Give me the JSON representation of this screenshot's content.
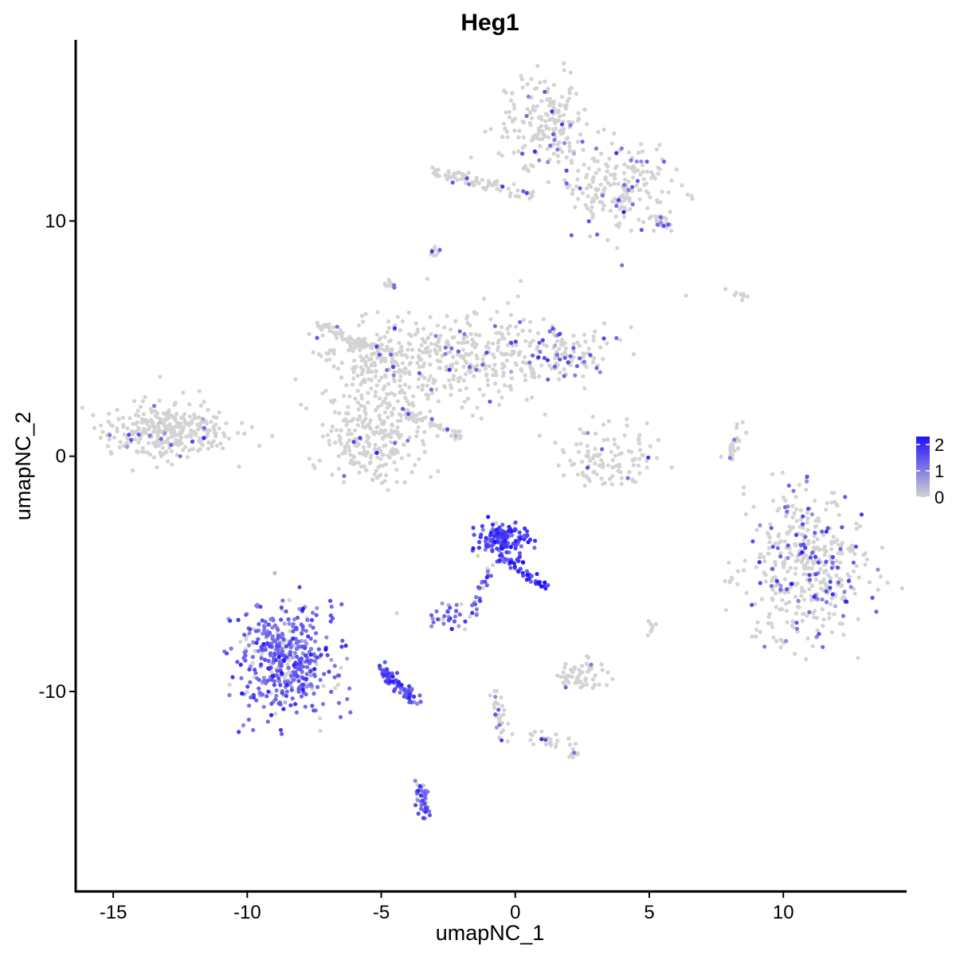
{
  "chart_data": {
    "type": "scatter",
    "title": "Heg1",
    "xlabel": "umapNC_1",
    "ylabel": "umapNC_2",
    "xlim": [
      -16.4,
      14.6
    ],
    "ylim": [
      -18.5,
      17.7
    ],
    "xticks": [
      -15,
      -10,
      -5,
      0,
      5,
      10
    ],
    "yticks": [
      -10,
      0,
      10
    ],
    "xtick_labels": [
      "-15",
      "-10",
      "-5",
      "0",
      "5",
      "10"
    ],
    "ytick_labels": [
      "-10",
      "0",
      "10"
    ],
    "grid": false,
    "legend_position": "right",
    "color_scale": {
      "low": "#d3d3d3",
      "high": "#1f10ff",
      "min": 0,
      "max": 2.3
    },
    "legend_ticks": [
      2,
      1,
      0
    ],
    "legend_tick_labels": [
      "2",
      "1",
      "0"
    ],
    "point_clusters": [
      {
        "cx": -13.0,
        "cy": 1.1,
        "sx": 1.2,
        "sy": 0.6,
        "n": 320,
        "mean_expr": 0.03
      },
      {
        "cx": -5.3,
        "cy": 0.8,
        "sx": 0.9,
        "sy": 1.0,
        "n": 260,
        "mean_expr": 0.04
      },
      {
        "cx": -4.8,
        "cy": 4.0,
        "sx": 1.3,
        "sy": 0.9,
        "n": 240,
        "mean_expr": 0.06
      },
      {
        "cx": -1.5,
        "cy": 4.2,
        "sx": 1.4,
        "sy": 1.0,
        "n": 240,
        "mean_expr": 0.1
      },
      {
        "cx": 1.8,
        "cy": 4.3,
        "sx": 1.0,
        "sy": 0.6,
        "n": 120,
        "mean_expr": 0.3
      },
      {
        "cx": 1.0,
        "cy": 14.2,
        "sx": 0.8,
        "sy": 1.0,
        "n": 200,
        "mean_expr": 0.12
      },
      {
        "cx": 3.9,
        "cy": 11.5,
        "sx": 1.1,
        "sy": 1.0,
        "n": 200,
        "mean_expr": 0.18
      },
      {
        "cx": 10.8,
        "cy": -4.7,
        "sx": 1.1,
        "sy": 1.6,
        "n": 430,
        "mean_expr": 0.25
      },
      {
        "cx": -8.6,
        "cy": -8.6,
        "sx": 0.9,
        "sy": 1.1,
        "n": 460,
        "mean_expr": 1.1
      },
      {
        "cx": -0.5,
        "cy": -3.6,
        "sx": 0.5,
        "sy": 0.4,
        "n": 140,
        "mean_expr": 1.6
      },
      {
        "cx": 2.5,
        "cy": -9.3,
        "sx": 0.4,
        "sy": 0.3,
        "n": 60,
        "mean_expr": 0.05
      },
      {
        "cx": 3.5,
        "cy": 0.1,
        "sx": 0.8,
        "sy": 0.7,
        "n": 110,
        "mean_expr": 0.08
      }
    ],
    "point_strands": [
      {
        "x0": -2.0,
        "y0": 11.9,
        "x1": 0.5,
        "y1": 11.1,
        "n": 50,
        "mean_expr": 0.1
      },
      {
        "x0": -3.0,
        "y0": 12.0,
        "x1": -2.0,
        "y1": 11.9,
        "n": 30,
        "mean_expr": 0.08
      },
      {
        "x0": -7.3,
        "y0": 5.6,
        "x1": -5.0,
        "y1": 4.2,
        "n": 60,
        "mean_expr": 0.05
      },
      {
        "x0": -4.2,
        "y0": 2.0,
        "x1": -2.0,
        "y1": 0.8,
        "n": 40,
        "mean_expr": 0.1
      },
      {
        "x0": -5.0,
        "y0": -9.0,
        "x1": -3.8,
        "y1": -10.4,
        "n": 90,
        "mean_expr": 1.4
      },
      {
        "x0": -0.5,
        "y0": -4.3,
        "x1": 1.2,
        "y1": -5.6,
        "n": 40,
        "mean_expr": 1.7
      },
      {
        "x0": -1.6,
        "y0": -6.8,
        "x1": -0.9,
        "y1": -4.5,
        "n": 30,
        "mean_expr": 1.0
      },
      {
        "x0": -3.5,
        "y0": -14.0,
        "x1": -3.4,
        "y1": -15.3,
        "n": 40,
        "mean_expr": 1.1
      },
      {
        "x0": -0.8,
        "y0": -10.0,
        "x1": -0.4,
        "y1": -12.0,
        "n": 30,
        "mean_expr": 0.3
      },
      {
        "x0": 0.5,
        "y0": -11.8,
        "x1": 2.4,
        "y1": -12.7,
        "n": 30,
        "mean_expr": 0.1
      },
      {
        "x0": 7.9,
        "y0": -0.2,
        "x1": 8.4,
        "y1": 1.3,
        "n": 25,
        "mean_expr": 0.05
      },
      {
        "x0": 5.3,
        "y0": 10.1,
        "x1": 5.9,
        "y1": 9.6,
        "n": 20,
        "mean_expr": 0.15
      }
    ],
    "point_small_groups": [
      {
        "cx": -3.0,
        "cy": 8.7,
        "sx": 0.1,
        "sy": 0.1,
        "n": 10,
        "mean_expr": 0.4
      },
      {
        "cx": -4.7,
        "cy": 7.3,
        "sx": 0.1,
        "sy": 0.1,
        "n": 12,
        "mean_expr": 0.2
      },
      {
        "cx": -2.5,
        "cy": -6.9,
        "sx": 0.4,
        "sy": 0.3,
        "n": 30,
        "mean_expr": 1.0
      },
      {
        "cx": 5.1,
        "cy": -7.3,
        "sx": 0.1,
        "sy": 0.2,
        "n": 8,
        "mean_expr": 0.05
      },
      {
        "cx": 8.5,
        "cy": 6.8,
        "sx": 0.3,
        "sy": 0.1,
        "n": 6,
        "mean_expr": 0.0
      },
      {
        "cx": 7.3,
        "cy": 7.0,
        "sx": 0.4,
        "sy": 0.2,
        "n": 3,
        "mean_expr": 0.0
      },
      {
        "cx": 8.0,
        "cy": -5.2,
        "sx": 0.2,
        "sy": 0.1,
        "n": 6,
        "mean_expr": 0.1
      }
    ]
  }
}
